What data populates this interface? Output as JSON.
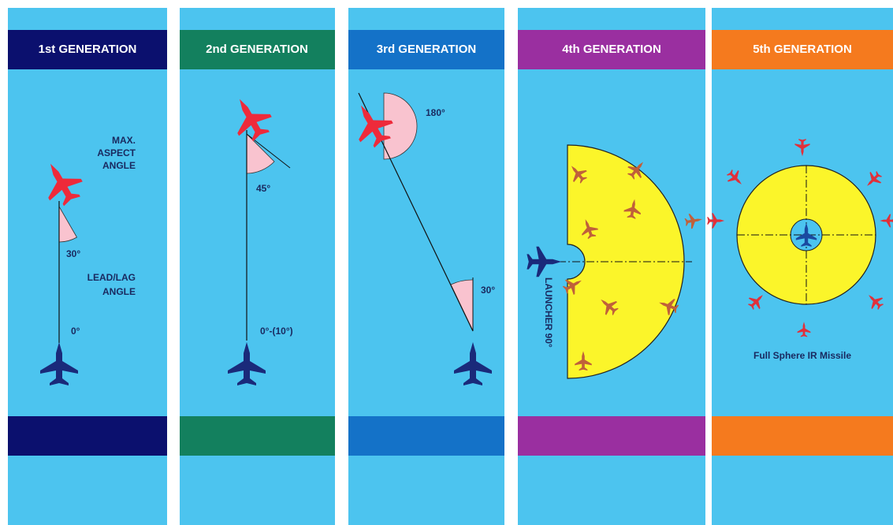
{
  "panels": [
    {
      "header": "1st GENERATION",
      "labels": {
        "max_aspect_angle": [
          "MAX.",
          "ASPECT",
          "ANGLE"
        ],
        "angle": "30°",
        "lead_lag_angle": [
          "LEAD/LAG",
          "ANGLE"
        ],
        "launch": "0°"
      }
    },
    {
      "header": "2nd GENERATION",
      "labels": {
        "angle": "45°",
        "launch": "0°-(10°)"
      }
    },
    {
      "header": "3rd GENERATION",
      "labels": {
        "rear_angle": "180°",
        "angle": "30°"
      }
    },
    {
      "header": "4th GENERATION",
      "labels": {
        "launcher": "LAUNCHER 90°"
      }
    },
    {
      "header": "5th GENERATION",
      "labels": {
        "caption": "Full Sphere IR Missile"
      }
    }
  ]
}
